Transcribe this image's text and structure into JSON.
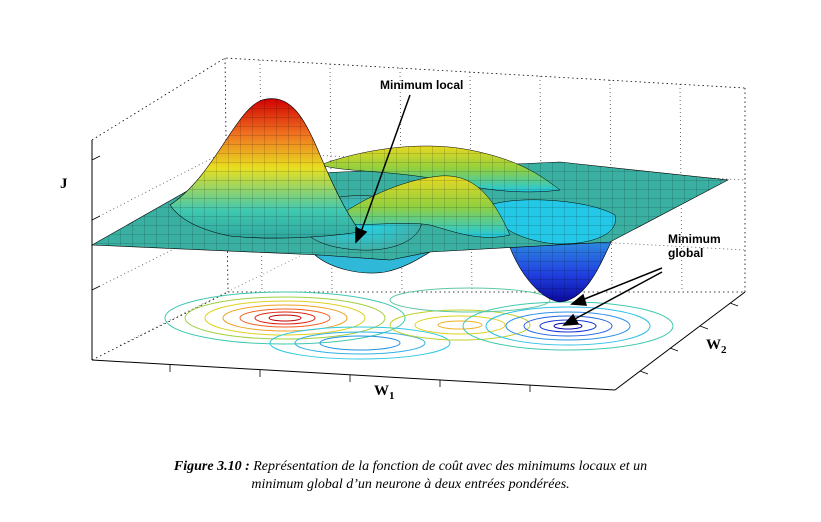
{
  "annotations": {
    "local_minimum": "Minimum local",
    "global_minimum_line1": "Minimum",
    "global_minimum_line2": "global"
  },
  "axes": {
    "z_label": "J",
    "x_label": "W",
    "x_sub": "1",
    "y_label": "W",
    "y_sub": "2"
  },
  "caption": {
    "lead": "Figure 3.10 :",
    "line1": " Représentation de la fonction de coût avec des minimums locaux et un",
    "line2": "minimum global d’un neurone à deux entrées pondérées."
  },
  "colors": {
    "peak": "#cc0000",
    "mid": "#e6e619",
    "surface": "#3bb5a8",
    "trough": "#1010c0"
  }
}
